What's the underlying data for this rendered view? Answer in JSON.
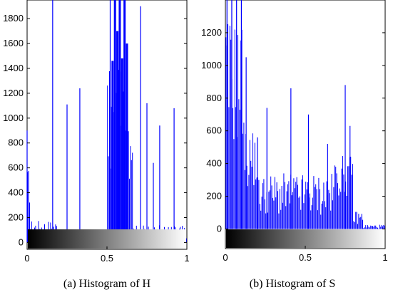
{
  "chart_data": [
    {
      "type": "bar",
      "caption": "(a) Histogram of H",
      "xlim": [
        0,
        1
      ],
      "ylim": [
        -55,
        1950
      ],
      "xticks": [
        0,
        0.5,
        1
      ],
      "xtick_labels": [
        "0",
        "0.5",
        "1"
      ],
      "yticks": [
        0,
        200,
        400,
        600,
        800,
        1000,
        1200,
        1400,
        1600,
        1800
      ],
      "ytick_labels": [
        "0",
        "200",
        "400",
        "600",
        "800",
        "1000",
        "1200",
        "1400",
        "1600",
        "1800"
      ],
      "grid": false,
      "bar_color": "#0000ff",
      "colorbar": "grayscale black-to-white",
      "spikes": [
        {
          "x": 0.0,
          "y": 900
        },
        {
          "x": 0.16,
          "y": 1950
        },
        {
          "x": 0.33,
          "y": 1240
        },
        {
          "x": 0.25,
          "y": 1110
        },
        {
          "x": 0.52,
          "y": 1950
        },
        {
          "x": 0.71,
          "y": 1900
        },
        {
          "x": 0.75,
          "y": 1120
        },
        {
          "x": 0.79,
          "y": 640
        },
        {
          "x": 0.83,
          "y": 940
        },
        {
          "x": 0.92,
          "y": 1080
        }
      ],
      "peaks": [
        {
          "x": 0.535,
          "y": 1460
        },
        {
          "x": 0.55,
          "y": 1950
        },
        {
          "x": 0.565,
          "y": 1700
        },
        {
          "x": 0.58,
          "y": 1950
        },
        {
          "x": 0.595,
          "y": 1480
        },
        {
          "x": 0.61,
          "y": 1950
        },
        {
          "x": 0.625,
          "y": 1600
        }
      ]
    },
    {
      "type": "bar",
      "caption": "(b) Histogram of S",
      "xlim": [
        0,
        1
      ],
      "ylim": [
        -120,
        1400
      ],
      "xticks": [
        0,
        0.5,
        1
      ],
      "xtick_labels": [
        "0",
        "0.5",
        "1"
      ],
      "yticks": [
        0,
        200,
        400,
        600,
        800,
        1000,
        1200,
        1400
      ],
      "ytick_labels": [
        "0",
        "200",
        "400",
        "600",
        "800",
        "1000",
        "1200",
        "1400"
      ],
      "grid": false,
      "bar_color": "#0000ff",
      "colorbar": "grayscale black-to-white",
      "spikes": [
        {
          "x": 0.01,
          "y": 1400
        },
        {
          "x": 0.04,
          "y": 1400
        },
        {
          "x": 0.07,
          "y": 1400
        },
        {
          "x": 0.1,
          "y": 1400
        },
        {
          "x": 0.13,
          "y": 1050
        },
        {
          "x": 0.2,
          "y": 560
        },
        {
          "x": 0.26,
          "y": 740
        },
        {
          "x": 0.41,
          "y": 860
        },
        {
          "x": 0.52,
          "y": 700
        },
        {
          "x": 0.64,
          "y": 520
        },
        {
          "x": 0.75,
          "y": 880
        },
        {
          "x": 0.78,
          "y": 630
        }
      ]
    }
  ]
}
